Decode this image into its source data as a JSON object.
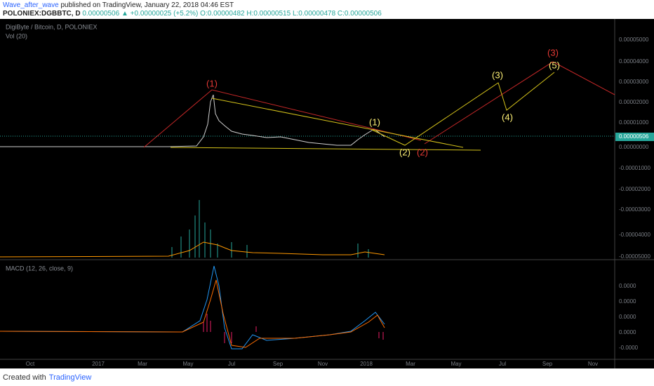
{
  "header": {
    "author": "Wave_after_wave",
    "published": "published on TradingView, January 22, 2018 04:46 EST",
    "symbol": "POLONIEX:DGBBTC, D",
    "last": "0.00000506",
    "change": "▲ +0.00000025 (+5.2%)",
    "open": "O:0.00000482",
    "high": "H:0.00000515",
    "low": "L:0.00000478",
    "close": "C:0.00000506"
  },
  "panes": {
    "main": "DigiByte / Bitcoin, D, POLONIEX",
    "volume": "Vol (20)",
    "macd": "MACD (12, 26, close, 9)"
  },
  "price_axis": [
    "0.00005000",
    "0.00004000",
    "0.00003000",
    "0.00002000",
    "0.00001000",
    "0.00000506",
    "0.00000000",
    "-0.00001000",
    "-0.00002000",
    "-0.00003000",
    "-0.00004000",
    "-0.00005000"
  ],
  "macd_axis": [
    "0.0000",
    "0.0000",
    "0.0000",
    "0.0000",
    "-0.0000"
  ],
  "time_axis": [
    "Oct",
    "2017",
    "Mar",
    "May",
    "Jul",
    "Sep",
    "Nov",
    "2018",
    "Mar",
    "May",
    "Jul",
    "Sep",
    "Nov"
  ],
  "waves": [
    {
      "label": "(1)",
      "color": "#e53935"
    },
    {
      "label": "(1)",
      "color": "#fff176"
    },
    {
      "label": "(2)",
      "color": "#fff176"
    },
    {
      "label": "(2)",
      "color": "#e53935"
    },
    {
      "label": "(3)",
      "color": "#fff176"
    },
    {
      "label": "(4)",
      "color": "#fff176"
    },
    {
      "label": "(5)",
      "color": "#fff176"
    },
    {
      "label": "(3)",
      "color": "#e53935"
    }
  ],
  "footer": {
    "created": "Created with",
    "brand": "TradingView"
  }
}
